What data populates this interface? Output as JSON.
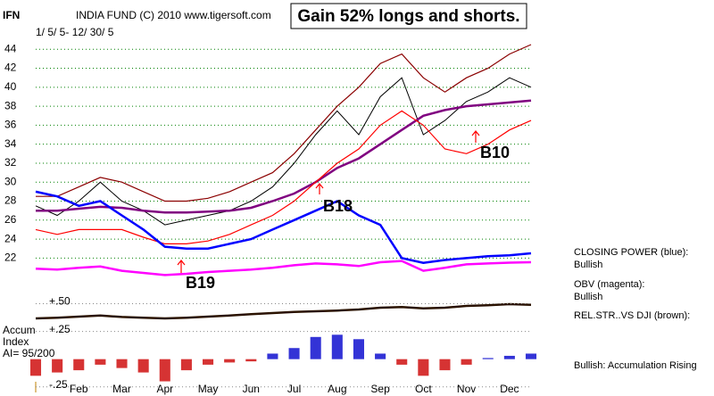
{
  "chart_data": {
    "type": "line",
    "symbol": "IFN",
    "title": "INDIA FUND   (C) 2010 www.tigersoft.com",
    "subtitle": "1/ 5/ 5- 12/ 30/ 5",
    "headline": "Gain 52% longs and shorts.",
    "categories": [
      null,
      null,
      "Feb",
      null,
      "Mar",
      null,
      "Apr",
      null,
      "May",
      null,
      "Jun",
      null,
      "Jul",
      null,
      "Aug",
      null,
      "Sep",
      null,
      "Oct",
      null,
      "Nov",
      null,
      "Dec",
      null
    ],
    "ylim": [
      21,
      46
    ],
    "yticks": [
      22,
      24,
      26,
      28,
      30,
      32,
      34,
      36,
      38,
      40,
      42,
      44
    ],
    "grid": true,
    "series": [
      {
        "color": "#000000",
        "values": [
          27.5,
          26.5,
          28,
          30,
          28,
          27,
          25.5,
          26,
          26.5,
          27,
          28,
          29.5,
          32,
          35,
          37.5,
          35,
          39,
          41,
          35,
          36.5,
          38.5,
          39.5,
          41,
          40
        ]
      },
      {
        "color": "#800080",
        "values": [
          27,
          27,
          27.2,
          27.4,
          27.3,
          27,
          26.8,
          26.8,
          26.9,
          27,
          27.3,
          28,
          28.8,
          30,
          31.5,
          32.5,
          34,
          35.5,
          37,
          37.6,
          38,
          38.2,
          38.4,
          38.6
        ]
      },
      {
        "color": "#8b0000",
        "values": [
          28.5,
          28.5,
          29.5,
          30.5,
          30,
          29,
          28,
          28,
          28.3,
          29,
          30,
          31,
          33,
          35.5,
          38,
          40,
          42.5,
          43.5,
          41,
          39.5,
          41,
          42,
          43.5,
          44.5
        ]
      },
      {
        "color": "#ff0000",
        "values": [
          25,
          24.5,
          25,
          25,
          25,
          24.2,
          23.5,
          23.5,
          23.8,
          24.5,
          25.5,
          26.5,
          28,
          30,
          32,
          33.5,
          36,
          37.5,
          36,
          33.5,
          33,
          34,
          35.5,
          36.5
        ]
      },
      {
        "color": "#0000ff",
        "values": [
          29,
          28.5,
          27.5,
          28,
          26.5,
          25,
          23.2,
          23,
          23,
          23.5,
          24,
          25,
          26,
          27,
          28,
          26.5,
          25.5,
          22,
          21.5,
          21.8,
          22,
          22.2,
          22.3,
          22.5
        ]
      }
    ],
    "obv": {
      "color": "#ff00ff",
      "ylim": [
        0,
        100
      ],
      "values": [
        60,
        58,
        62,
        65,
        55,
        50,
        45,
        48,
        52,
        55,
        58,
        62,
        68,
        72,
        70,
        66,
        75,
        78,
        55,
        62,
        70,
        72,
        74,
        75
      ]
    },
    "rel_strength": {
      "color": "#2a1200",
      "ylim": [
        0,
        100
      ],
      "values": [
        20,
        22,
        25,
        28,
        24,
        22,
        20,
        22,
        25,
        28,
        32,
        35,
        38,
        40,
        42,
        45,
        50,
        52,
        48,
        50,
        55,
        57,
        60,
        58
      ]
    },
    "accumulation": {
      "ylim": [
        -0.3,
        0.52
      ],
      "yticks": [
        {
          "value": 0.5,
          "label": "+.50"
        },
        {
          "value": 0.25,
          "label": "+.25"
        },
        {
          "value": -0.25,
          "label": "-.25"
        }
      ],
      "positive_color": "#0000cc",
      "negative_color": "#cc0000",
      "values": [
        -0.15,
        -0.12,
        -0.1,
        -0.05,
        -0.08,
        -0.12,
        -0.2,
        -0.1,
        -0.05,
        -0.03,
        -0.02,
        0.05,
        0.1,
        0.2,
        0.22,
        0.18,
        0.05,
        -0.05,
        -0.15,
        -0.1,
        -0.05,
        0.01,
        0.03,
        0.05
      ]
    },
    "accum_label": [
      "Accum",
      "Index",
      "AI= 95/200"
    ],
    "annotations": [
      "B19",
      "B18",
      "B10"
    ],
    "side_labels": [
      "CLOSING POWER (blue):",
      "Bullish",
      "OBV (magenta):",
      "Bullish",
      "REL.STR..VS DJI (brown):",
      "Bullish: Accumulation Rising"
    ]
  }
}
